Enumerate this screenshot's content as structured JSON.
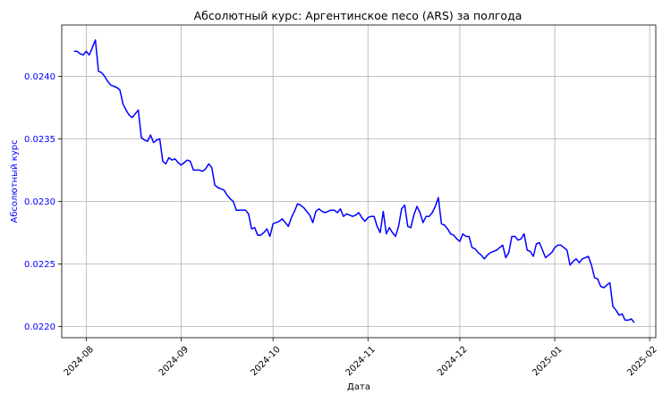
{
  "chart_data": {
    "type": "line",
    "title": "Абсолютный курс: Аргентинское песо (ARS) за полгода",
    "xlabel": "Дата",
    "ylabel": "Абсолютный курс",
    "x_tick_labels": [
      "2024-08",
      "2024-09",
      "2024-10",
      "2024-11",
      "2024-12",
      "2025-01",
      "2025-02"
    ],
    "x_ticks": [
      "2024-08-01",
      "2024-09-01",
      "2024-10-01",
      "2024-11-01",
      "2024-12-01",
      "2025-01-01",
      "2025-02-01"
    ],
    "y_tick_labels": [
      "0.0220",
      "0.0225",
      "0.0230",
      "0.0235",
      "0.0240"
    ],
    "y_ticks": [
      0.022,
      0.0225,
      0.023,
      0.0235,
      0.024
    ],
    "xlim": [
      "2024-07-24",
      "2025-02-03"
    ],
    "ylim": [
      0.02191,
      0.02441
    ],
    "grid": true,
    "line_color": "#0000ff",
    "axis_label_color": "#0000ff",
    "series": [
      {
        "x": [
          "2024-07-28",
          "2024-07-29",
          "2024-07-30",
          "2024-07-31",
          "2024-08-01",
          "2024-08-02",
          "2024-08-03",
          "2024-08-04",
          "2024-08-05",
          "2024-08-06",
          "2024-08-07",
          "2024-08-08",
          "2024-08-09",
          "2024-08-10",
          "2024-08-11",
          "2024-08-12",
          "2024-08-13",
          "2024-08-14",
          "2024-08-15",
          "2024-08-16",
          "2024-08-17",
          "2024-08-18",
          "2024-08-19",
          "2024-08-20",
          "2024-08-21",
          "2024-08-22",
          "2024-08-23",
          "2024-08-24",
          "2024-08-25",
          "2024-08-26",
          "2024-08-27",
          "2024-08-28",
          "2024-08-29",
          "2024-08-30",
          "2024-08-31",
          "2024-09-01",
          "2024-09-02",
          "2024-09-03",
          "2024-09-04",
          "2024-09-05",
          "2024-09-06",
          "2024-09-07",
          "2024-09-08",
          "2024-09-09",
          "2024-09-10",
          "2024-09-11",
          "2024-09-12",
          "2024-09-13",
          "2024-09-14",
          "2024-09-15",
          "2024-09-16",
          "2024-09-17",
          "2024-09-18",
          "2024-09-19",
          "2024-09-20",
          "2024-09-21",
          "2024-09-22",
          "2024-09-23",
          "2024-09-24",
          "2024-09-25",
          "2024-09-26",
          "2024-09-27",
          "2024-09-28",
          "2024-09-29",
          "2024-09-30",
          "2024-10-01",
          "2024-10-02",
          "2024-10-03",
          "2024-10-04",
          "2024-10-05",
          "2024-10-06",
          "2024-10-07",
          "2024-10-08",
          "2024-10-09",
          "2024-10-10",
          "2024-10-11",
          "2024-10-12",
          "2024-10-13",
          "2024-10-14",
          "2024-10-15",
          "2024-10-16",
          "2024-10-17",
          "2024-10-18",
          "2024-10-19",
          "2024-10-20",
          "2024-10-21",
          "2024-10-22",
          "2024-10-23",
          "2024-10-24",
          "2024-10-25",
          "2024-10-26",
          "2024-10-27",
          "2024-10-28",
          "2024-10-29",
          "2024-10-30",
          "2024-10-31",
          "2024-11-01",
          "2024-11-02",
          "2024-11-03",
          "2024-11-04",
          "2024-11-05",
          "2024-11-06",
          "2024-11-07",
          "2024-11-08",
          "2024-11-09",
          "2024-11-10",
          "2024-11-11",
          "2024-11-12",
          "2024-11-13",
          "2024-11-14",
          "2024-11-15",
          "2024-11-16",
          "2024-11-17",
          "2024-11-18",
          "2024-11-19",
          "2024-11-20",
          "2024-11-21",
          "2024-11-22",
          "2024-11-23",
          "2024-11-24",
          "2024-11-25",
          "2024-11-26",
          "2024-11-27",
          "2024-11-28",
          "2024-11-29",
          "2024-11-30",
          "2024-12-01",
          "2024-12-02",
          "2024-12-03",
          "2024-12-04",
          "2024-12-05",
          "2024-12-06",
          "2024-12-07",
          "2024-12-08",
          "2024-12-09",
          "2024-12-10",
          "2024-12-11",
          "2024-12-12",
          "2024-12-13",
          "2024-12-14",
          "2024-12-15",
          "2024-12-16",
          "2024-12-17",
          "2024-12-18",
          "2024-12-19",
          "2024-12-20",
          "2024-12-21",
          "2024-12-22",
          "2024-12-23",
          "2024-12-24",
          "2024-12-25",
          "2024-12-26",
          "2024-12-27",
          "2024-12-28",
          "2024-12-29",
          "2024-12-30",
          "2024-12-31",
          "2025-01-01",
          "2025-01-02",
          "2025-01-03",
          "2025-01-04",
          "2025-01-05",
          "2025-01-06",
          "2025-01-07",
          "2025-01-08",
          "2025-01-09",
          "2025-01-10",
          "2025-01-11",
          "2025-01-12",
          "2025-01-13",
          "2025-01-14",
          "2025-01-15",
          "2025-01-16",
          "2025-01-17",
          "2025-01-18",
          "2025-01-19",
          "2025-01-20",
          "2025-01-21",
          "2025-01-22",
          "2025-01-23",
          "2025-01-24",
          "2025-01-25",
          "2025-01-26",
          "2025-01-27"
        ],
        "values": [
          0.0242,
          0.0242,
          0.02418,
          0.02417,
          0.0242,
          0.02417,
          0.02423,
          0.02429,
          0.02404,
          0.02403,
          0.024,
          0.02396,
          0.02393,
          0.02392,
          0.02391,
          0.02389,
          0.02378,
          0.02373,
          0.02369,
          0.02367,
          0.0237,
          0.02373,
          0.02351,
          0.02349,
          0.02348,
          0.02353,
          0.02347,
          0.02349,
          0.0235,
          0.02332,
          0.0233,
          0.02335,
          0.02333,
          0.02334,
          0.02331,
          0.02329,
          0.02331,
          0.02333,
          0.02332,
          0.02325,
          0.02325,
          0.02325,
          0.02324,
          0.02326,
          0.0233,
          0.02327,
          0.02313,
          0.02311,
          0.0231,
          0.02309,
          0.02305,
          0.02302,
          0.023,
          0.02293,
          0.02293,
          0.02293,
          0.02293,
          0.0229,
          0.02278,
          0.02279,
          0.02273,
          0.02273,
          0.02275,
          0.02278,
          0.02272,
          0.02282,
          0.02283,
          0.02284,
          0.02286,
          0.02283,
          0.0228,
          0.02287,
          0.02292,
          0.02298,
          0.02297,
          0.02295,
          0.02292,
          0.02289,
          0.02283,
          0.02292,
          0.02294,
          0.02292,
          0.02291,
          0.02292,
          0.02293,
          0.02293,
          0.02291,
          0.02294,
          0.02288,
          0.0229,
          0.02289,
          0.02288,
          0.02289,
          0.02291,
          0.02287,
          0.02284,
          0.02287,
          0.02288,
          0.02288,
          0.0228,
          0.02275,
          0.02292,
          0.02274,
          0.02279,
          0.02275,
          0.02272,
          0.0228,
          0.02294,
          0.02297,
          0.0228,
          0.02279,
          0.02289,
          0.02296,
          0.02291,
          0.02283,
          0.02288,
          0.02288,
          0.02291,
          0.02296,
          0.02303,
          0.02282,
          0.02281,
          0.02278,
          0.02274,
          0.02273,
          0.0227,
          0.02268,
          0.02274,
          0.02272,
          0.02272,
          0.02263,
          0.02262,
          0.02259,
          0.02257,
          0.02254,
          0.02257,
          0.02259,
          0.0226,
          0.02261,
          0.02263,
          0.02265,
          0.02255,
          0.02259,
          0.02272,
          0.02272,
          0.02269,
          0.0227,
          0.02274,
          0.02261,
          0.0226,
          0.02256,
          0.02266,
          0.02267,
          0.02261,
          0.02255,
          0.02257,
          0.02259,
          0.02263,
          0.02265,
          0.02265,
          0.02263,
          0.02261,
          0.02249,
          0.02252,
          0.02254,
          0.02251,
          0.02254,
          0.02255,
          0.02256,
          0.02249,
          0.02239,
          0.02238,
          0.02232,
          0.02231,
          0.02233,
          0.02235,
          0.02216,
          0.02213,
          0.02209,
          0.0221,
          0.02205,
          0.02205,
          0.02206,
          0.02203
        ]
      }
    ]
  }
}
